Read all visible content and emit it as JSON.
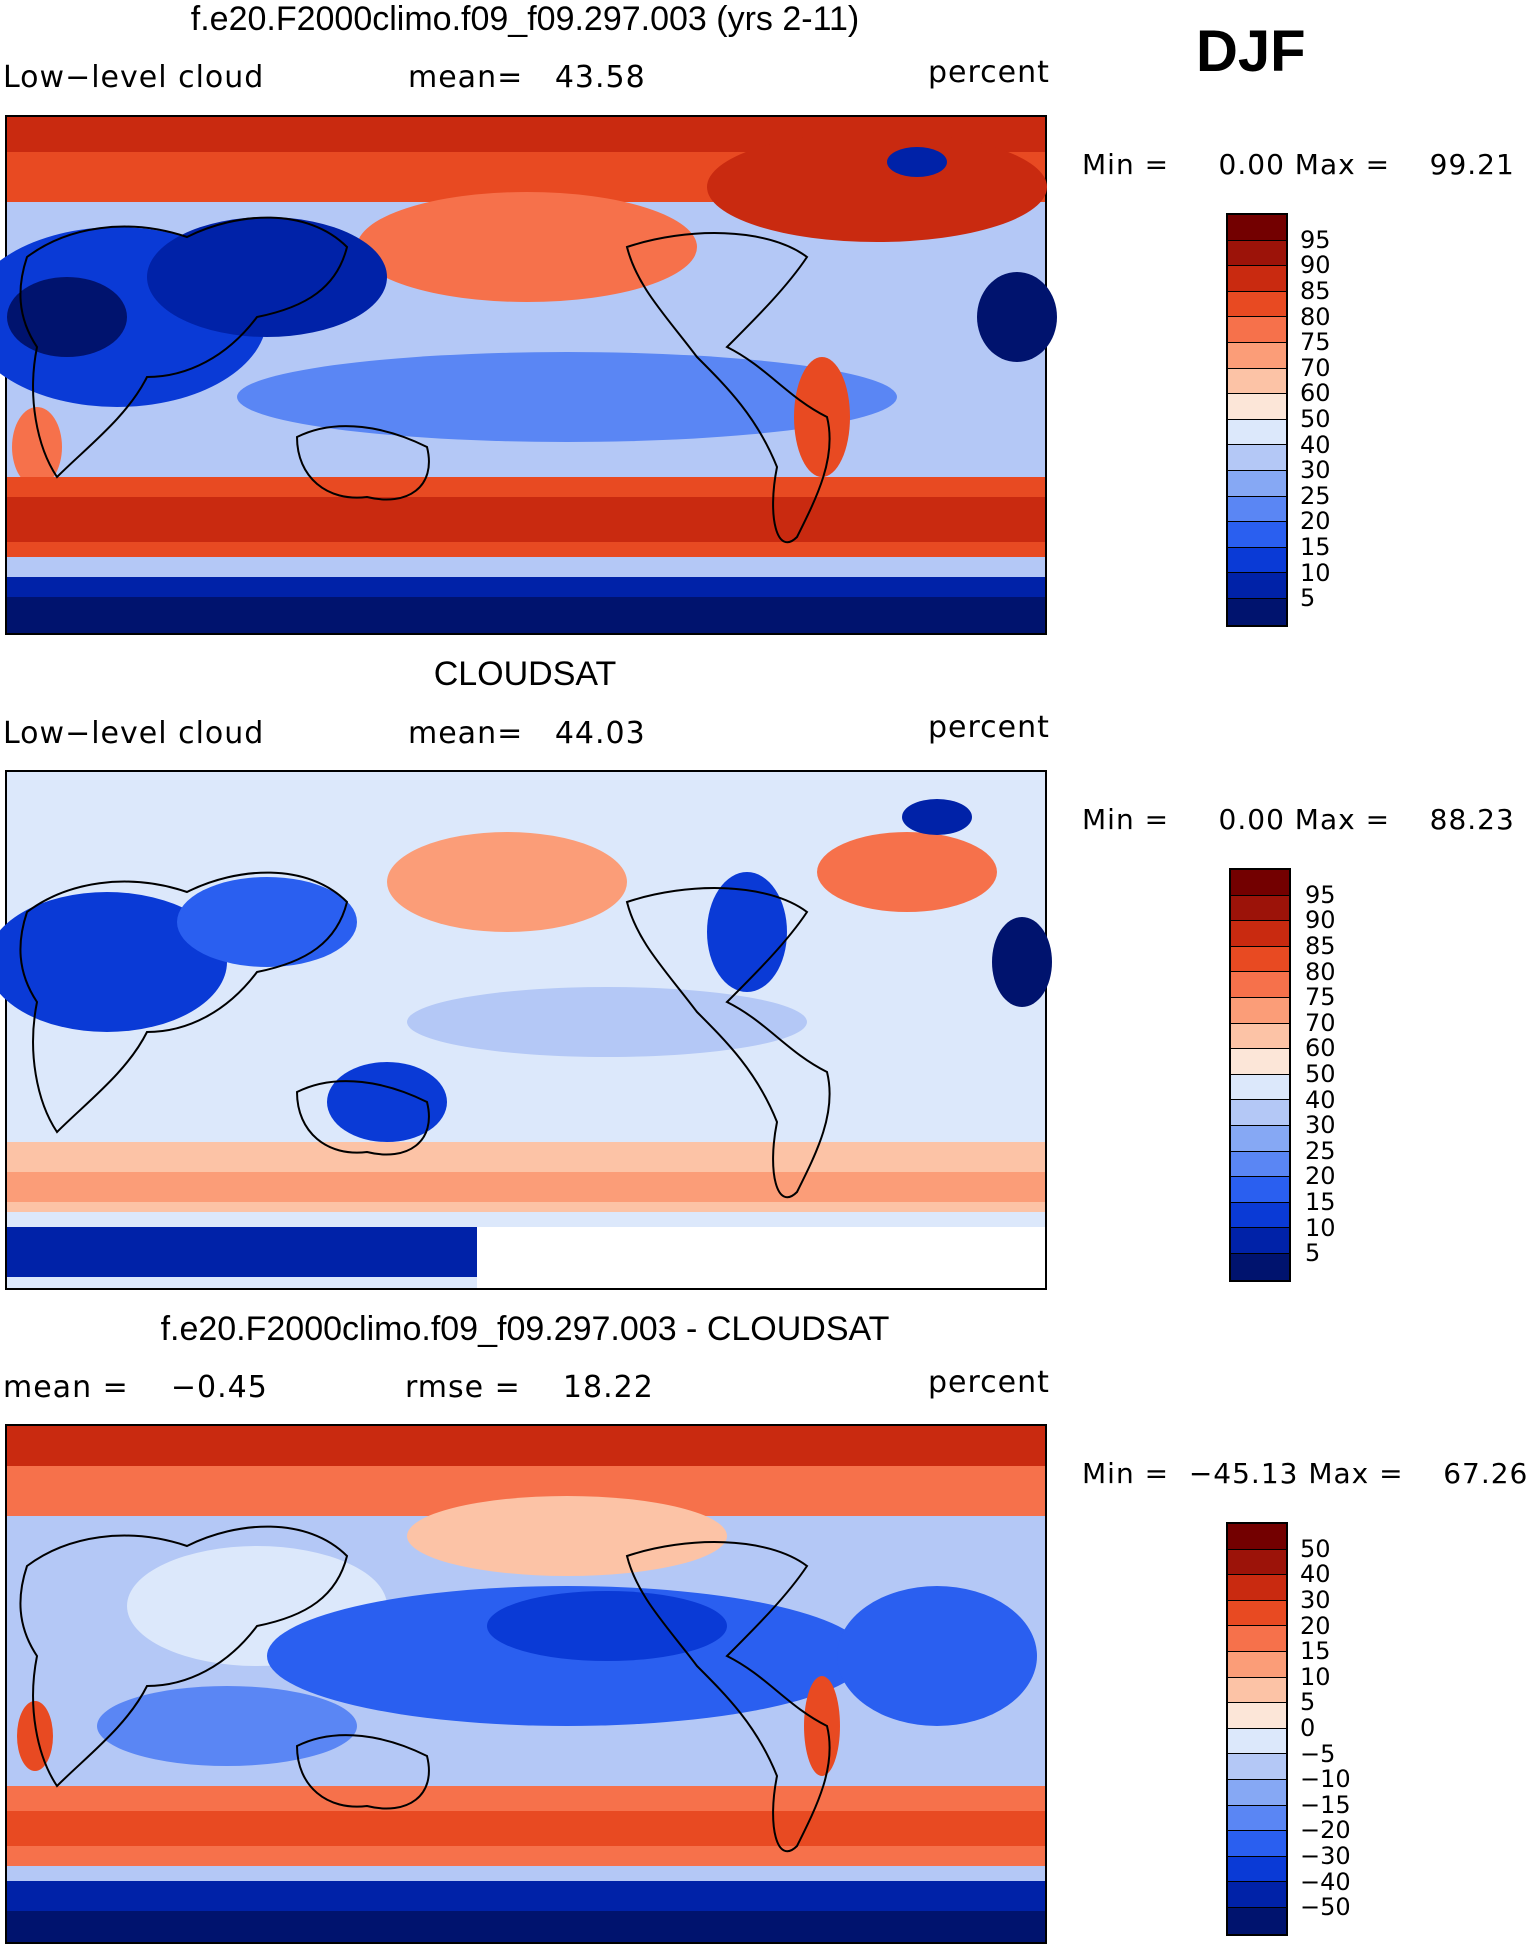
{
  "season": "DJF",
  "palette_warm_cool": [
    "#00136e",
    "#0022a8",
    "#0a3ad6",
    "#2a5ff0",
    "#5a86f4",
    "#86a8f4",
    "#b4c8f6",
    "#dce8fb",
    "#fce6d8",
    "#fcc3a6",
    "#fb9d78",
    "#f6714b",
    "#e84a22",
    "#c92a10",
    "#9c1309",
    "#730000"
  ],
  "panels": [
    {
      "title": "f.e20.F2000climo.f09_f09.297.003 (yrs 2-11)",
      "left_label": "Low−level cloud",
      "center_label": "mean=   43.58",
      "right_label": "percent",
      "stats": "Min =     0.00 Max =    99.21",
      "colorbar_levels": [
        "95",
        "90",
        "85",
        "80",
        "75",
        "70",
        "60",
        "50",
        "40",
        "30",
        "25",
        "20",
        "15",
        "10",
        "5"
      ],
      "background": "#b4c8f6"
    },
    {
      "title": "CLOUDSAT",
      "left_label": "Low−level cloud",
      "center_label": "mean=   44.03",
      "right_label": "percent",
      "stats": "Min =     0.00 Max =    88.23",
      "colorbar_levels": [
        "95",
        "90",
        "85",
        "80",
        "75",
        "70",
        "60",
        "50",
        "40",
        "30",
        "25",
        "20",
        "15",
        "10",
        "5"
      ],
      "background": "#dce8fb"
    },
    {
      "title": "f.e20.F2000climo.f09_f09.297.003 - CLOUDSAT",
      "left_label": "mean =    −0.45",
      "center_label": "rmse =    18.22",
      "right_label": "percent",
      "stats": "Min =  −45.13 Max =    67.26",
      "colorbar_levels": [
        "50",
        "40",
        "30",
        "20",
        "15",
        "10",
        "5",
        "0",
        "−5",
        "−10",
        "−15",
        "−20",
        "−30",
        "−40",
        "−50"
      ],
      "background": "#b4c8f6"
    }
  ]
}
